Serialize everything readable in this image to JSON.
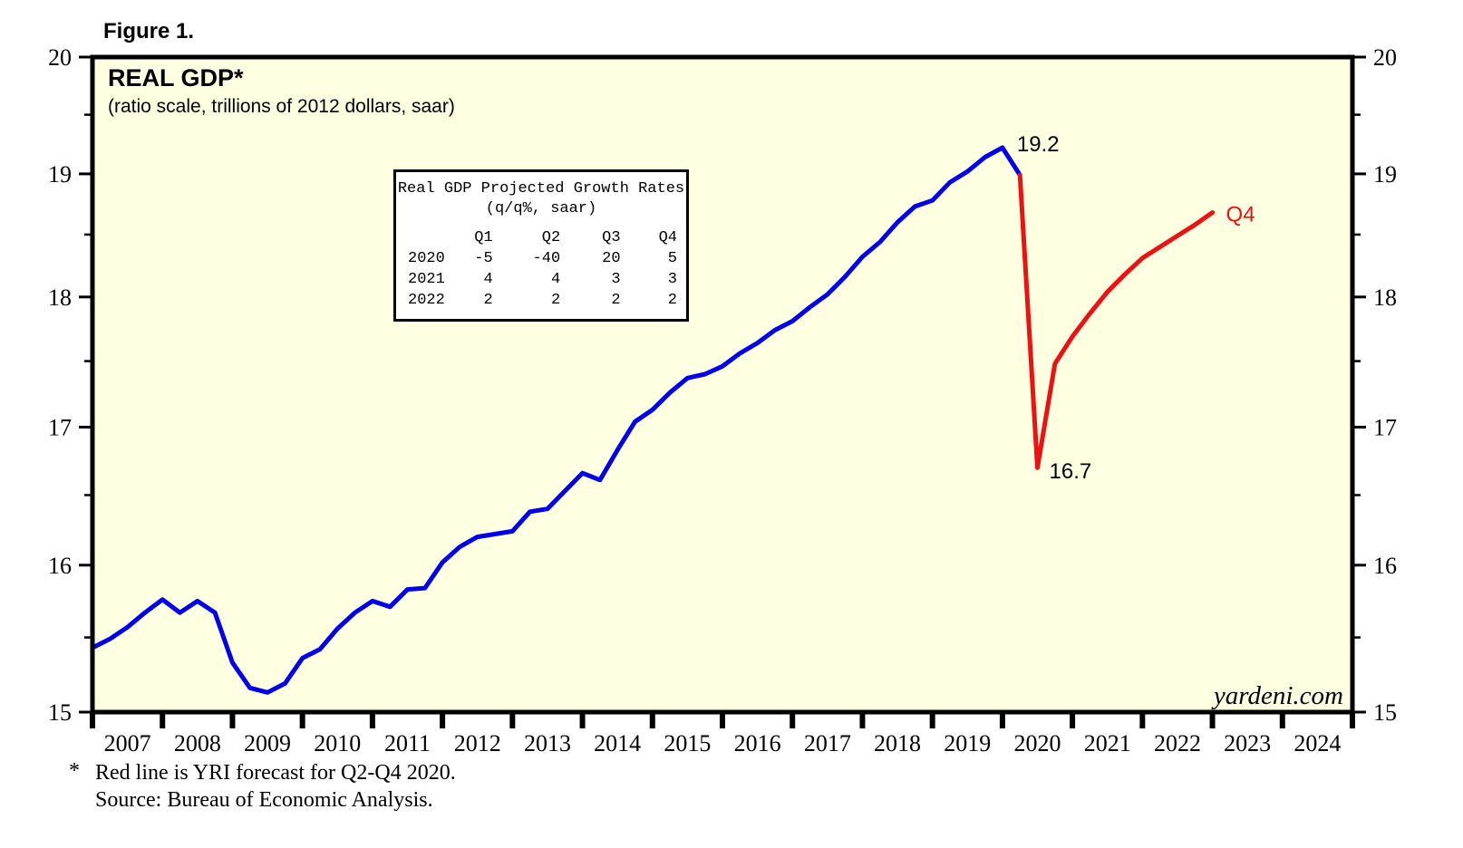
{
  "page": {
    "figure_label": "Figure 1."
  },
  "chart": {
    "title": "REAL GDP*",
    "subtitle": "(ratio scale, trillions of 2012 dollars, saar)",
    "watermark": "yardeni.com",
    "colors": {
      "actual_line": "#0000EE",
      "forecast_line": "#EE1111",
      "plot_background": "#FFFFE1",
      "axis": "#000000",
      "inset_background": "#FFFFFF"
    }
  },
  "inset_table": {
    "title_line1": "Real GDP Projected Growth Rates",
    "title_line2": "(q/q%, saar)",
    "col_headers": [
      "",
      "Q1",
      "Q2",
      "Q3",
      "Q4"
    ],
    "rows": [
      {
        "year": "2020",
        "values": [
          "-5",
          "-40",
          "20",
          "5"
        ]
      },
      {
        "year": "2021",
        "values": [
          "4",
          "4",
          "3",
          "3"
        ]
      },
      {
        "year": "2022",
        "values": [
          "2",
          "2",
          "2",
          "2"
        ]
      }
    ]
  },
  "footnote": {
    "asterisk": "*",
    "line1": "Red line is YRI forecast for Q2-Q4 2020.",
    "line2": "Source: Bureau of Economic Analysis."
  },
  "chart_data": {
    "type": "line",
    "title": "REAL GDP*",
    "subtitle": "(ratio scale, trillions of 2012 dollars, saar)",
    "xlabel": "",
    "ylabel": "trillions of 2012 dollars, saar",
    "y_scale": "log",
    "ylim": [
      15,
      20
    ],
    "y_major_ticks": [
      15,
      16,
      17,
      18,
      19,
      20
    ],
    "y_minor_ticks": [
      15.5,
      16.5,
      17.5,
      18.5,
      19.5
    ],
    "x_range": [
      2007,
      2025
    ],
    "x_year_labels": [
      "2007",
      "2008",
      "2009",
      "2010",
      "2011",
      "2012",
      "2013",
      "2014",
      "2015",
      "2016",
      "2017",
      "2018",
      "2019",
      "2020",
      "2021",
      "2022",
      "2023",
      "2024"
    ],
    "grid": false,
    "legend_position": "none",
    "series": [
      {
        "id": "gdp-actual-line",
        "name": "Real GDP (actual, quarterly)",
        "color": "#0000EE",
        "points": [
          [
            2007.0,
            15.43
          ],
          [
            2007.25,
            15.49
          ],
          [
            2007.5,
            15.57
          ],
          [
            2007.75,
            15.67
          ],
          [
            2008.0,
            15.76
          ],
          [
            2008.25,
            15.67
          ],
          [
            2008.5,
            15.75
          ],
          [
            2008.75,
            15.67
          ],
          [
            2009.0,
            15.33
          ],
          [
            2009.25,
            15.16
          ],
          [
            2009.5,
            15.13
          ],
          [
            2009.75,
            15.19
          ],
          [
            2010.0,
            15.36
          ],
          [
            2010.25,
            15.42
          ],
          [
            2010.5,
            15.56
          ],
          [
            2010.75,
            15.67
          ],
          [
            2011.0,
            15.75
          ],
          [
            2011.25,
            15.71
          ],
          [
            2011.5,
            15.83
          ],
          [
            2011.75,
            15.84
          ],
          [
            2012.0,
            16.02
          ],
          [
            2012.25,
            16.13
          ],
          [
            2012.5,
            16.2
          ],
          [
            2012.75,
            16.22
          ],
          [
            2013.0,
            16.24
          ],
          [
            2013.25,
            16.38
          ],
          [
            2013.5,
            16.4
          ],
          [
            2013.75,
            16.53
          ],
          [
            2014.0,
            16.66
          ],
          [
            2014.25,
            16.61
          ],
          [
            2014.5,
            16.83
          ],
          [
            2014.75,
            17.04
          ],
          [
            2015.0,
            17.13
          ],
          [
            2015.25,
            17.26
          ],
          [
            2015.5,
            17.37
          ],
          [
            2015.75,
            17.4
          ],
          [
            2016.0,
            17.46
          ],
          [
            2016.25,
            17.56
          ],
          [
            2016.5,
            17.64
          ],
          [
            2016.75,
            17.74
          ],
          [
            2017.0,
            17.81
          ],
          [
            2017.25,
            17.92
          ],
          [
            2017.5,
            18.02
          ],
          [
            2017.75,
            18.16
          ],
          [
            2018.0,
            18.32
          ],
          [
            2018.25,
            18.44
          ],
          [
            2018.5,
            18.6
          ],
          [
            2018.75,
            18.73
          ],
          [
            2019.0,
            18.78
          ],
          [
            2019.25,
            18.93
          ],
          [
            2019.5,
            19.02
          ],
          [
            2019.75,
            19.14
          ],
          [
            2020.0,
            19.22
          ],
          [
            2020.25,
            18.99
          ]
        ]
      },
      {
        "id": "gdp-forecast-line",
        "name": "YRI forecast (Q2-Q4 2020 onward)",
        "color": "#EE1111",
        "points": [
          [
            2020.25,
            18.99
          ],
          [
            2020.5,
            16.7
          ],
          [
            2020.75,
            17.48
          ],
          [
            2021.0,
            17.69
          ],
          [
            2021.25,
            17.87
          ],
          [
            2021.5,
            18.04
          ],
          [
            2021.75,
            18.18
          ],
          [
            2022.0,
            18.31
          ],
          [
            2022.25,
            18.4
          ],
          [
            2022.5,
            18.49
          ],
          [
            2022.75,
            18.58
          ],
          [
            2023.0,
            18.68
          ]
        ]
      }
    ],
    "annotations": [
      {
        "id": "peak",
        "text": "19.2",
        "x": 2020.0,
        "y": 19.22,
        "color": "#000000"
      },
      {
        "id": "trough",
        "text": "16.7",
        "x": 2020.5,
        "y": 16.7,
        "color": "#000000"
      },
      {
        "id": "line-end",
        "text": "Q4",
        "x": 2023.0,
        "y": 18.68,
        "color": "#EE1111"
      }
    ],
    "watermark": "yardeni.com"
  }
}
